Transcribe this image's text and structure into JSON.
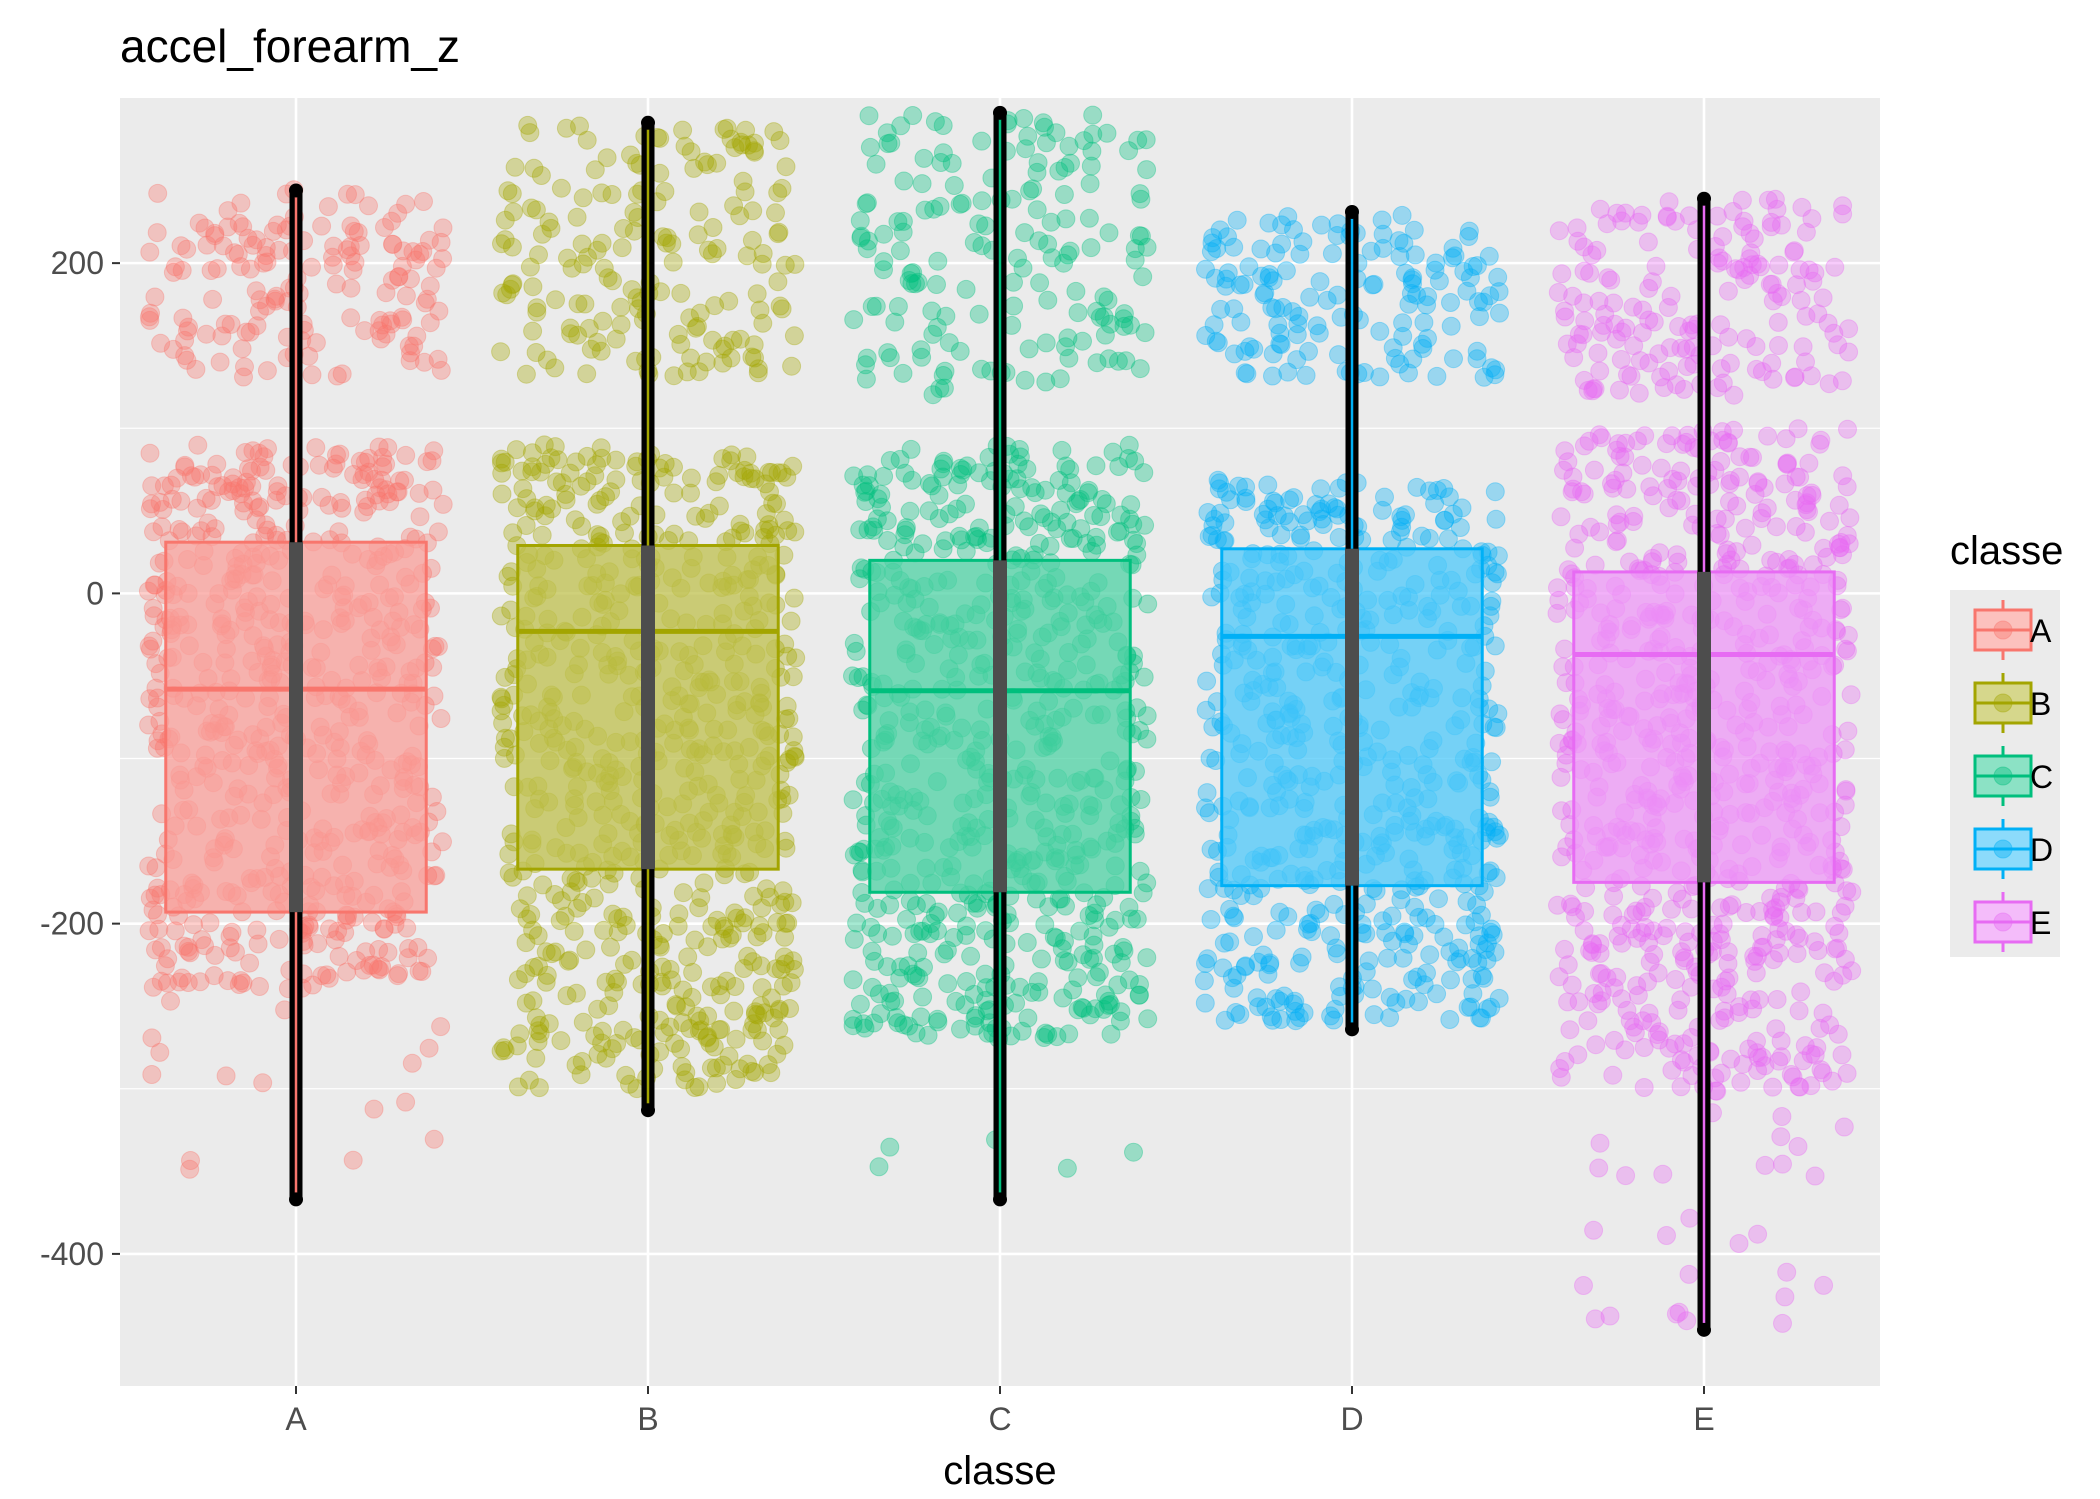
{
  "chart_data": {
    "type": "boxplot",
    "title": "accel_forearm_z",
    "xlabel": "classe",
    "ylabel": "",
    "categories": [
      "A",
      "B",
      "C",
      "D",
      "E"
    ],
    "ylim": [
      -480,
      300
    ],
    "yticks": [
      -400,
      -200,
      0,
      200
    ],
    "grid": true,
    "legend": {
      "title": "classe",
      "position": "right",
      "entries": [
        "A",
        "B",
        "C",
        "D",
        "E"
      ]
    },
    "colors": {
      "A": "#F8766D",
      "B": "#A3A500",
      "C": "#00BF7D",
      "D": "#00B0F6",
      "E": "#E76BF3"
    },
    "background": "#EBEBEB",
    "boxes": [
      {
        "category": "A",
        "q1": -193,
        "median": -58,
        "q3": 31,
        "whisker_low": -367,
        "whisker_high": 244
      },
      {
        "category": "B",
        "q1": -167,
        "median": -23,
        "q3": 29,
        "whisker_low": -313,
        "whisker_high": 285
      },
      {
        "category": "C",
        "q1": -181,
        "median": -59,
        "q3": 20,
        "whisker_low": -367,
        "whisker_high": 291
      },
      {
        "category": "D",
        "q1": -177,
        "median": -26,
        "q3": 27,
        "whisker_low": -264,
        "whisker_high": 231
      },
      {
        "category": "E",
        "q1": -175,
        "median": -37,
        "q3": 13,
        "whisker_low": -446,
        "whisker_high": 239
      }
    ],
    "point_clusters": [
      {
        "category": "A",
        "low": 130,
        "high": 245,
        "n": 160
      },
      {
        "category": "A",
        "low": -240,
        "high": 90,
        "n": 620
      },
      {
        "category": "A",
        "low": -365,
        "high": -240,
        "n": 16
      },
      {
        "category": "B",
        "low": 130,
        "high": 285,
        "n": 180
      },
      {
        "category": "B",
        "low": -300,
        "high": 90,
        "n": 680
      },
      {
        "category": "C",
        "low": 120,
        "high": 290,
        "n": 170
      },
      {
        "category": "C",
        "low": -270,
        "high": 90,
        "n": 640
      },
      {
        "category": "C",
        "low": -365,
        "high": -320,
        "n": 5
      },
      {
        "category": "D",
        "low": 130,
        "high": 230,
        "n": 150
      },
      {
        "category": "D",
        "low": -260,
        "high": 70,
        "n": 560
      },
      {
        "category": "E",
        "low": 120,
        "high": 240,
        "n": 170
      },
      {
        "category": "E",
        "low": -300,
        "high": 100,
        "n": 720
      },
      {
        "category": "E",
        "low": -445,
        "high": -300,
        "n": 30
      }
    ]
  }
}
